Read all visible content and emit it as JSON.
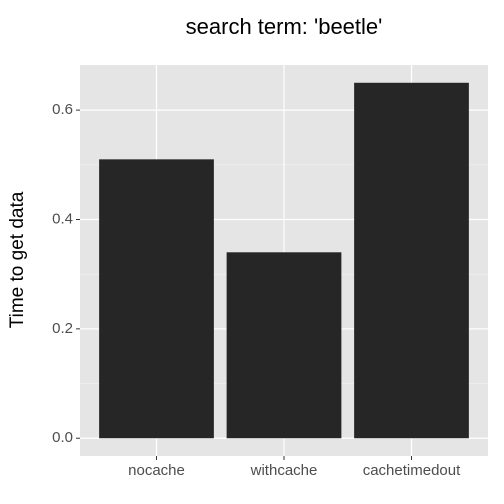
{
  "chart_data": {
    "type": "bar",
    "title": "search term: 'beetle'",
    "y_label": "Time to get data",
    "categories": [
      "nocache",
      "withcache",
      "cachetimedout"
    ],
    "values": [
      0.51,
      0.34,
      0.65
    ],
    "color": "#262626",
    "ylim": [
      -0.0325,
      0.6825
    ],
    "yticks": [
      {
        "value": 0,
        "label": "0.0"
      },
      0.2,
      0.4,
      0.6
    ],
    "y_minor_grid": [
      0.1,
      0.3,
      0.5
    ],
    "grid": true
  }
}
